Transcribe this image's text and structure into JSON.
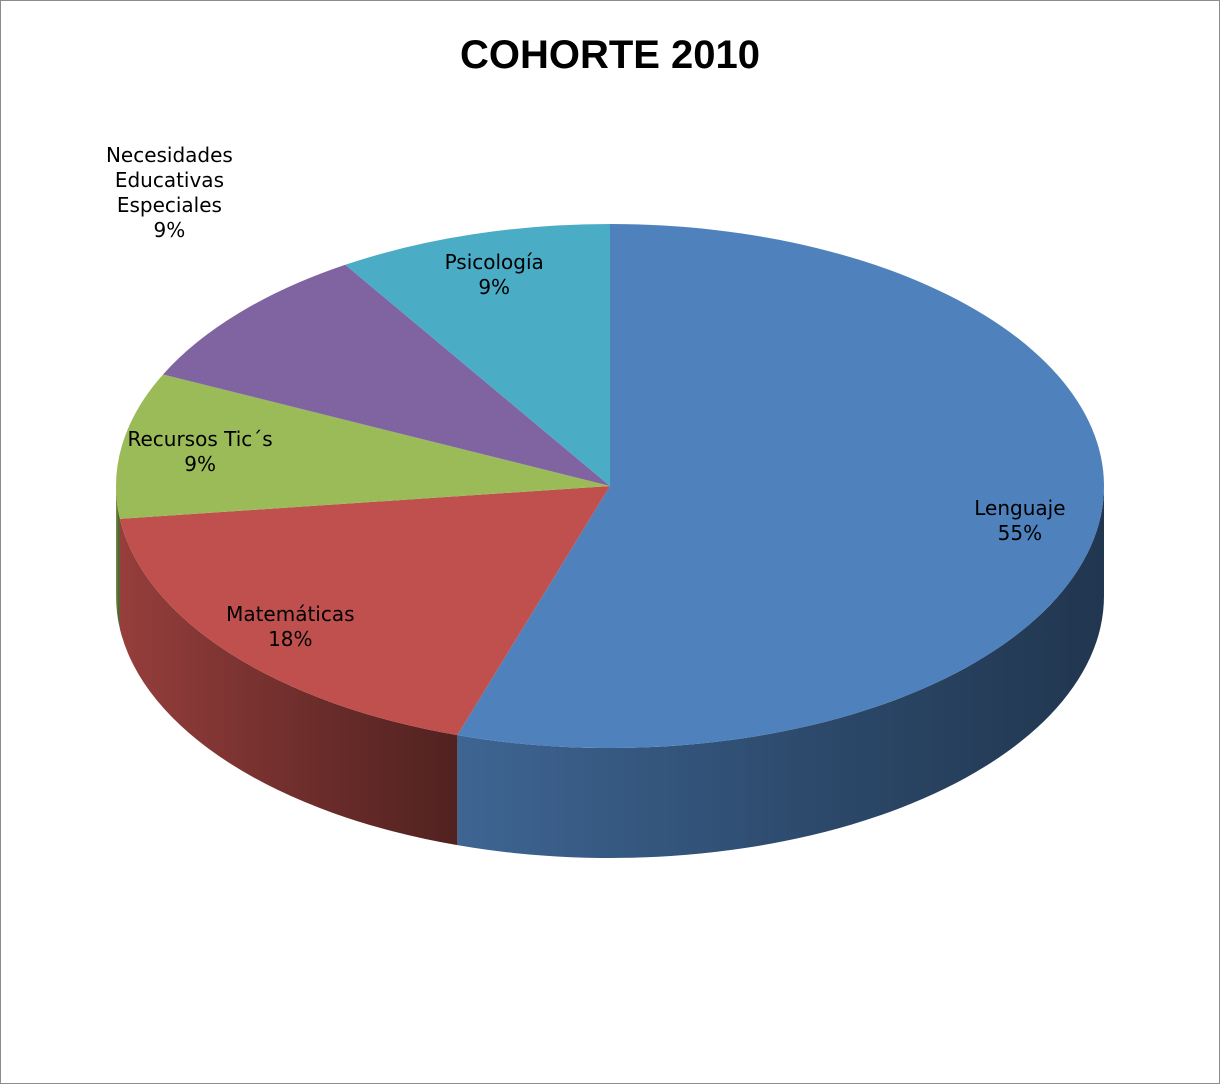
{
  "chart_data": {
    "type": "pie",
    "title": "COHORTE 2010",
    "three_d": true,
    "slices": [
      {
        "label": [
          "Lenguaje"
        ],
        "percent_label": "55%",
        "value": 55,
        "color": "#4F81BD"
      },
      {
        "label": [
          "Matemáticas"
        ],
        "percent_label": "18%",
        "value": 18,
        "color": "#C0504D"
      },
      {
        "label": [
          "Recursos Tic´s"
        ],
        "percent_label": "9%",
        "value": 9,
        "color": "#9BBB59"
      },
      {
        "label": [
          "Necesidades",
          "Educativas",
          "Especiales"
        ],
        "percent_label": "9%",
        "value": 9,
        "color": "#8064A2"
      },
      {
        "label": [
          "Psicología"
        ],
        "percent_label": "9%",
        "value": 9,
        "color": "#4BACC6"
      }
    ]
  }
}
